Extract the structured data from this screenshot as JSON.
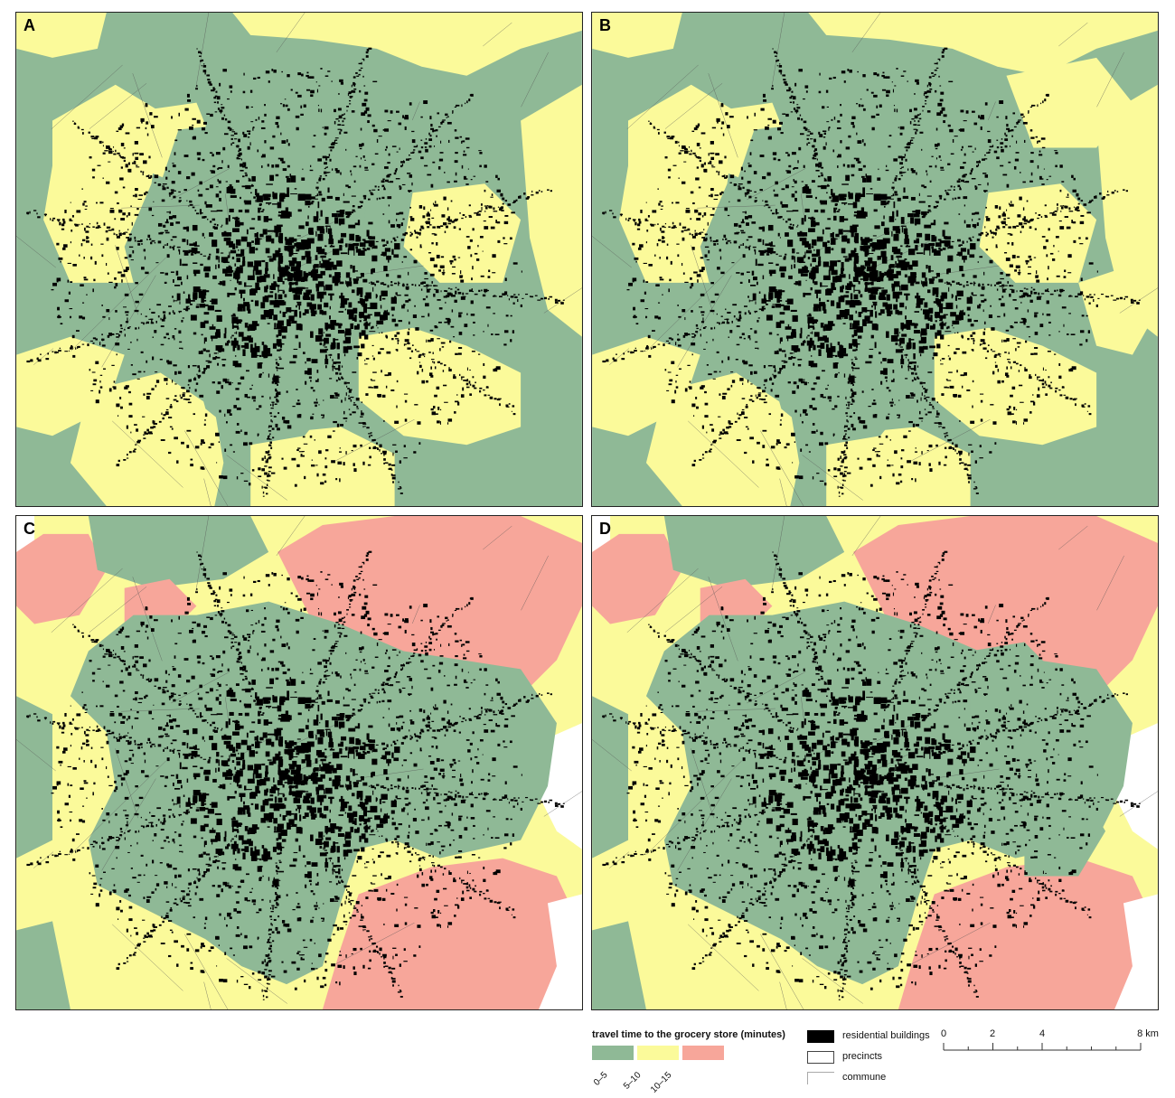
{
  "panels": [
    {
      "id": "a",
      "label": "A"
    },
    {
      "id": "b",
      "label": "B"
    },
    {
      "id": "c",
      "label": "C"
    },
    {
      "id": "d",
      "label": "D"
    }
  ],
  "colors": {
    "class_0_5": "#8fb996",
    "class_5_10": "#fbfa9a",
    "class_10_15": "#f7a69a",
    "buildings": "#000000",
    "boundary": "#555555"
  },
  "legend": {
    "title": "travel time to the grocery store (minutes)",
    "classes": [
      {
        "label": "0–5",
        "color": "#8fb996"
      },
      {
        "label": "5–10",
        "color": "#fbfa9a"
      },
      {
        "label": "10–15",
        "color": "#f7a69a"
      }
    ],
    "symbols": [
      {
        "label": "residential buildings",
        "style": "filled-black"
      },
      {
        "label": "precincts",
        "style": "dark-outline"
      },
      {
        "label": "commune",
        "style": "light-outline"
      }
    ]
  },
  "scale_bar": {
    "ticks": [
      "0",
      "2",
      "4",
      "8 km"
    ]
  }
}
